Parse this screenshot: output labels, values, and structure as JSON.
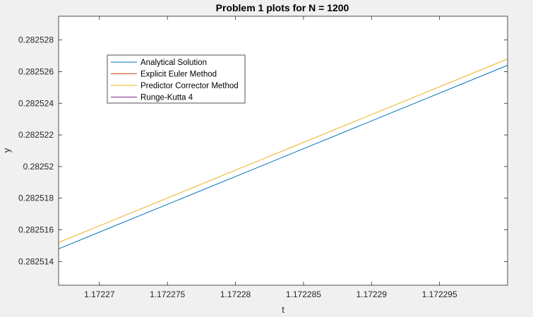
{
  "chart_data": {
    "type": "line",
    "title": "Problem 1 plots for N = 1200",
    "xlabel": "t",
    "ylabel": "y",
    "xlim": [
      1.172267,
      1.1723
    ],
    "ylim": [
      0.2825125,
      0.2825295
    ],
    "xticks": [
      1.17227,
      1.172275,
      1.17228,
      1.172285,
      1.17229,
      1.172295
    ],
    "xtick_labels": [
      "1.17227",
      "1.172275",
      "1.17228",
      "1.172285",
      "1.17229",
      "1.172295"
    ],
    "yticks": [
      0.282514,
      0.282516,
      0.282518,
      0.28252,
      0.282522,
      0.282524,
      0.282526,
      0.282528
    ],
    "ytick_labels": [
      "0.282514",
      "0.282516",
      "0.282518",
      "0.28252",
      "0.282522",
      "0.282524",
      "0.282526",
      "0.282528"
    ],
    "grid": false,
    "legend_position": "top-left",
    "series": [
      {
        "name": "Analytical Solution",
        "color": "#0072BD",
        "x": [
          1.172267,
          1.1723
        ],
        "y": [
          0.2825148,
          0.2825264
        ]
      },
      {
        "name": "Explicit Euler Method",
        "color": "#D95319",
        "x": [],
        "y": []
      },
      {
        "name": "Predictor Corrector Method",
        "color": "#EDB120",
        "x": [
          1.172267,
          1.1723
        ],
        "y": [
          0.2825152,
          0.2825268
        ]
      },
      {
        "name": "Runge-Kutta 4",
        "color": "#7E2F8E",
        "x": [],
        "y": []
      }
    ]
  }
}
